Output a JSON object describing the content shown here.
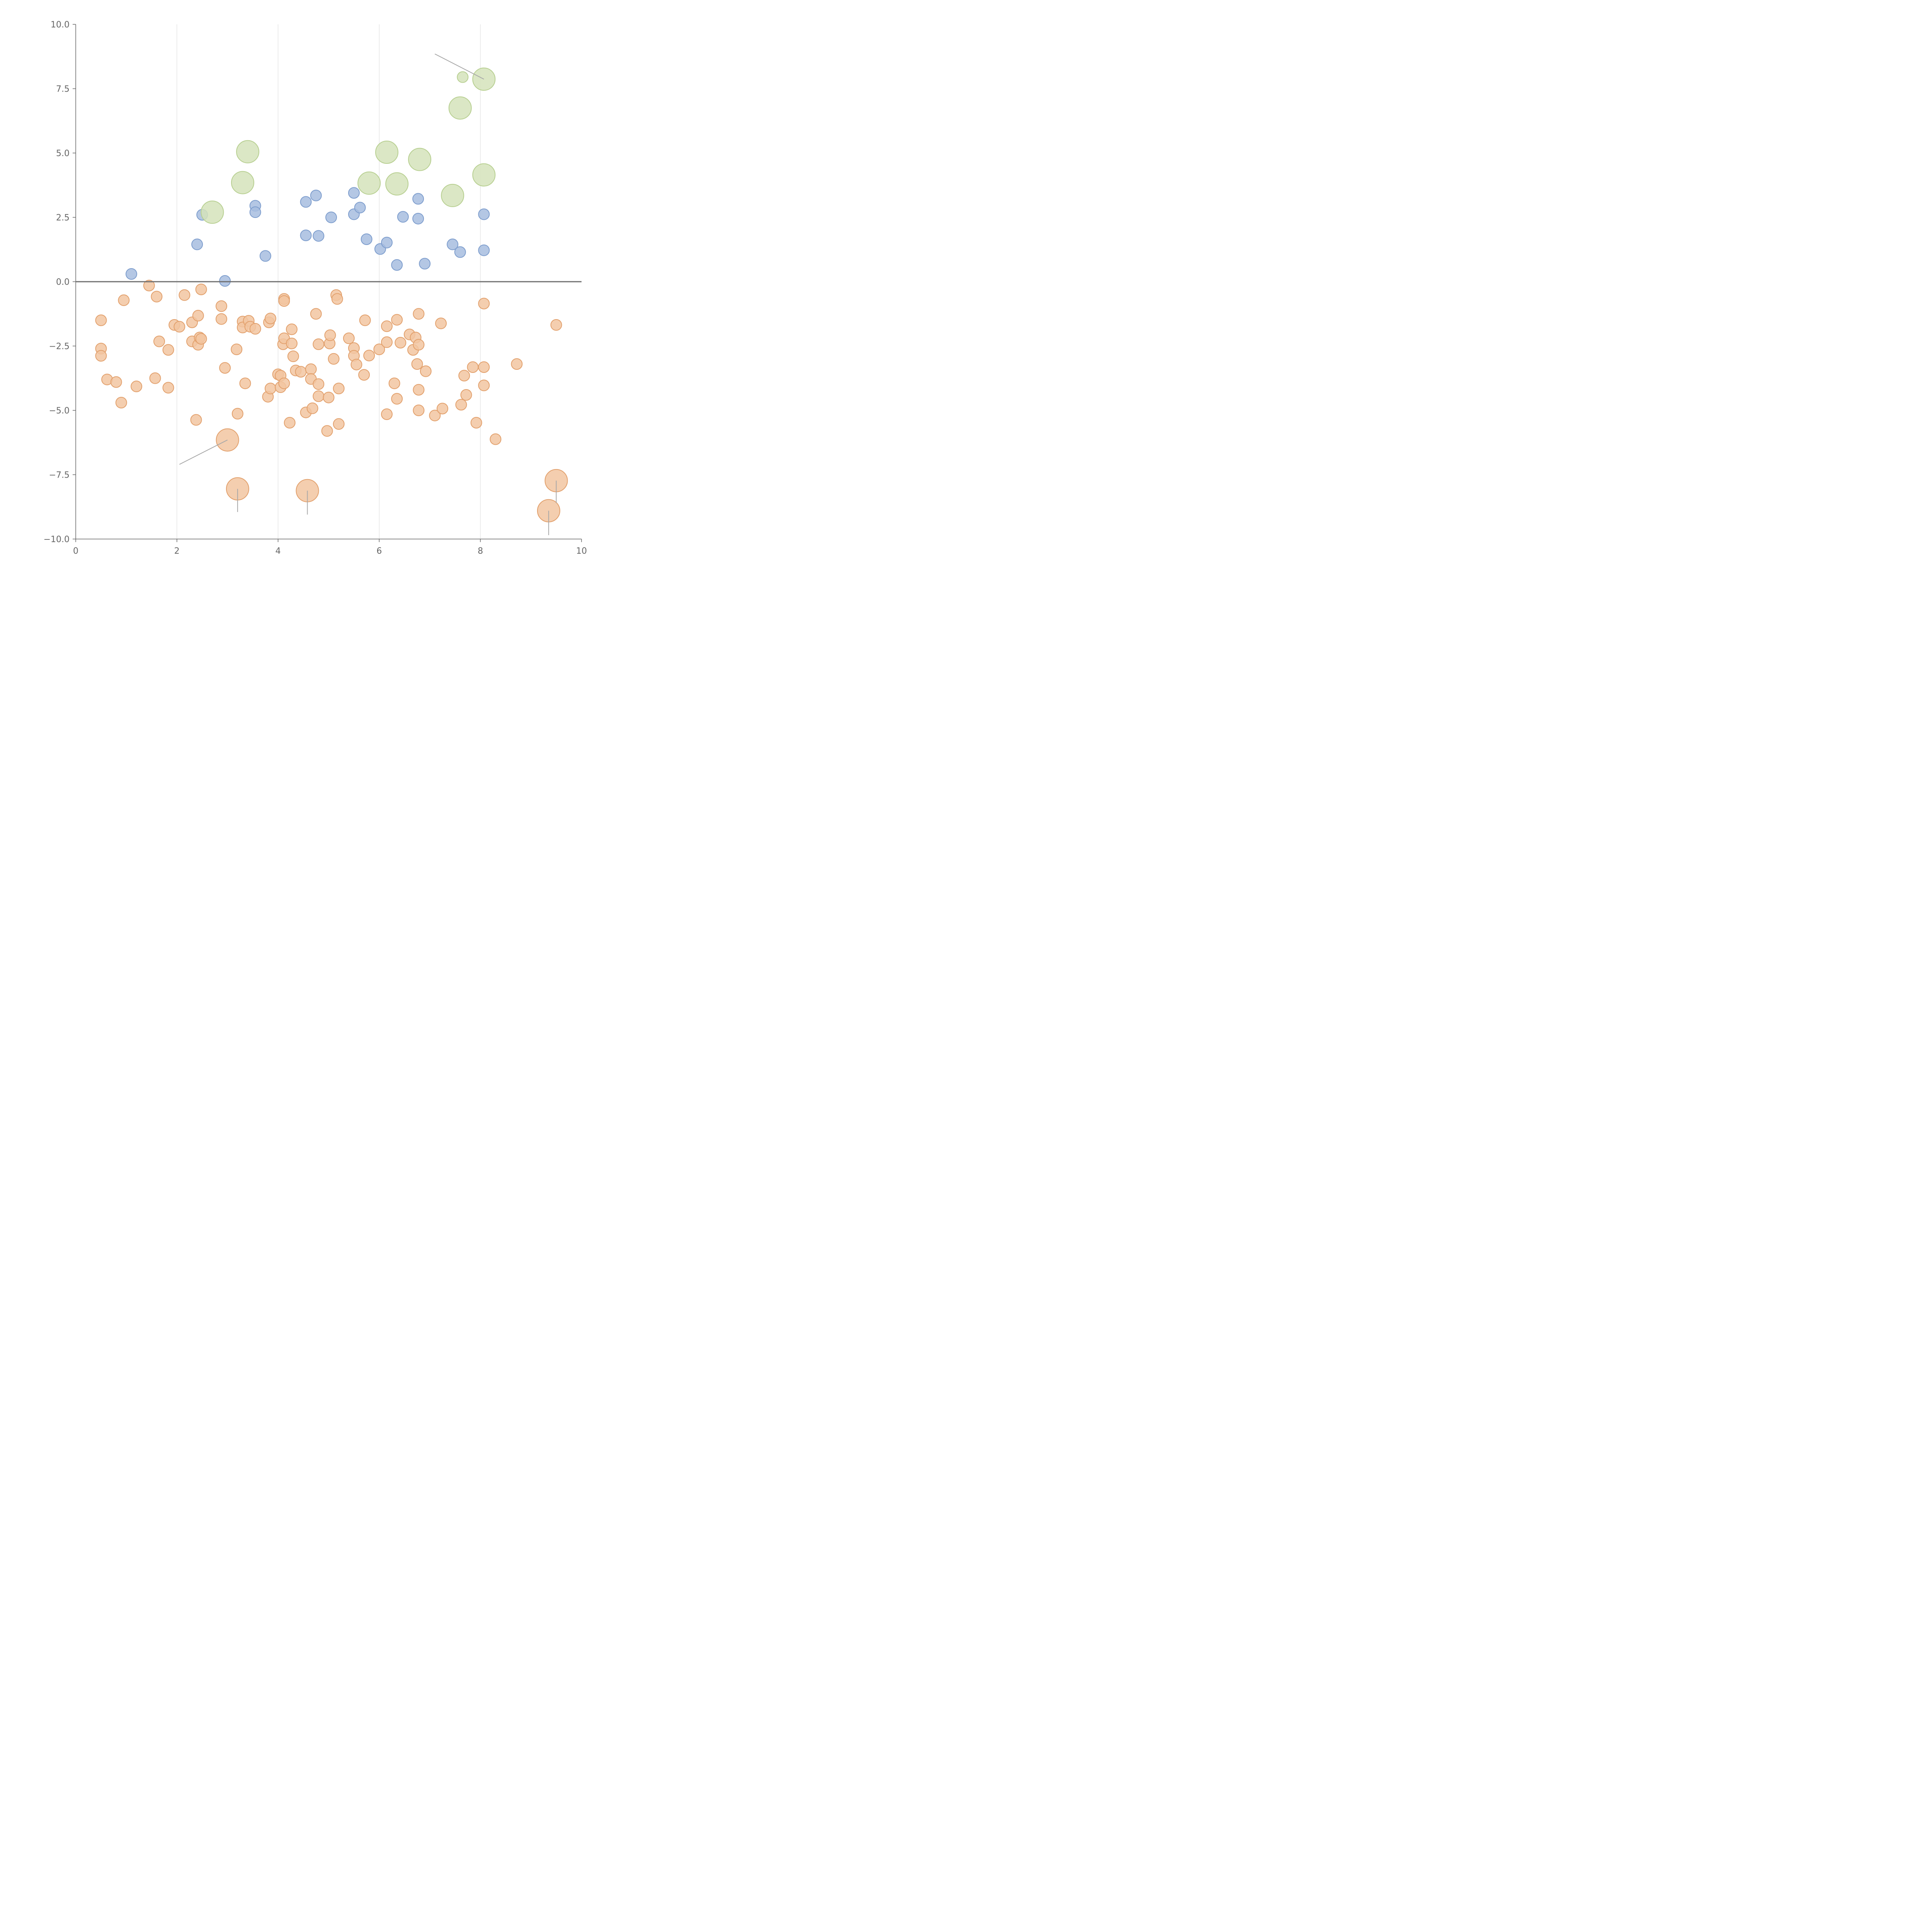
{
  "chart_data": {
    "type": "scatter",
    "title": "",
    "xlabel": "",
    "ylabel": "",
    "xlim": [
      0,
      10
    ],
    "ylim": [
      -10,
      10
    ],
    "x_ticks": [
      0,
      2,
      4,
      6,
      8,
      10
    ],
    "x_tick_labels": [
      "0",
      "2",
      "4",
      "6",
      "8",
      "10"
    ],
    "y_ticks": [
      10,
      7.5,
      5,
      2.5,
      0,
      -2.5,
      -5,
      -7.5,
      -10
    ],
    "y_tick_labels": [
      "10.0",
      "7.5",
      "5.0",
      "2.5",
      "0.0",
      "−2.5",
      "−5.0",
      "−7.5",
      "−10.0"
    ],
    "vertical_grid": true,
    "horizontal_reference_line": 0,
    "legend": "none",
    "colors": {
      "blue_fill": "#a7bddf",
      "blue_stroke": "#7d9dcd",
      "green_fill": "#d5e3bb",
      "green_stroke": "#b7cf90",
      "orange_fill": "#f2c6a1",
      "orange_stroke": "#e2a06c"
    },
    "series": [
      {
        "color": "blue",
        "size": "small",
        "points": [
          [
            1.1,
            0.3
          ],
          [
            2.4,
            1.45
          ],
          [
            2.5,
            2.6
          ],
          [
            2.95,
            0.03
          ],
          [
            3.55,
            2.95
          ],
          [
            3.55,
            2.7
          ],
          [
            3.75,
            1.0
          ],
          [
            4.55,
            3.1
          ],
          [
            4.55,
            1.8
          ],
          [
            4.75,
            3.35
          ],
          [
            4.8,
            1.78
          ],
          [
            5.05,
            2.5
          ],
          [
            5.5,
            3.45
          ],
          [
            5.5,
            2.62
          ],
          [
            5.62,
            2.88
          ],
          [
            5.75,
            1.65
          ],
          [
            6.02,
            1.27
          ],
          [
            6.15,
            1.52
          ],
          [
            6.35,
            0.65
          ],
          [
            6.47,
            2.52
          ],
          [
            6.77,
            3.22
          ],
          [
            6.77,
            2.45
          ],
          [
            6.9,
            0.7
          ],
          [
            7.45,
            1.45
          ],
          [
            7.6,
            1.15
          ],
          [
            8.07,
            2.62
          ],
          [
            8.07,
            1.22
          ]
        ]
      },
      {
        "color": "green",
        "size": "large",
        "points": [
          [
            2.7,
            2.7
          ],
          [
            3.3,
            3.85
          ],
          [
            3.4,
            5.05
          ],
          [
            5.8,
            3.83
          ],
          [
            6.15,
            5.03
          ],
          [
            6.35,
            3.8
          ],
          [
            6.8,
            4.75
          ],
          [
            7.45,
            3.35
          ],
          [
            7.6,
            6.75
          ],
          [
            8.07,
            7.87
          ],
          [
            8.07,
            4.15
          ]
        ]
      },
      {
        "color": "green",
        "size": "small",
        "points": [
          [
            7.65,
            7.95
          ]
        ]
      },
      {
        "color": "orange",
        "size": "small",
        "points": [
          [
            0.5,
            -1.5
          ],
          [
            0.5,
            -2.6
          ],
          [
            0.5,
            -2.88
          ],
          [
            0.62,
            -3.8
          ],
          [
            0.8,
            -3.9
          ],
          [
            0.9,
            -4.7
          ],
          [
            0.95,
            -0.72
          ],
          [
            1.2,
            -4.07
          ],
          [
            1.45,
            -0.15
          ],
          [
            1.57,
            -3.75
          ],
          [
            1.6,
            -0.58
          ],
          [
            1.65,
            -2.32
          ],
          [
            1.83,
            -2.65
          ],
          [
            1.83,
            -4.12
          ],
          [
            1.95,
            -1.68
          ],
          [
            2.05,
            -1.75
          ],
          [
            2.15,
            -0.52
          ],
          [
            2.3,
            -1.58
          ],
          [
            2.3,
            -2.32
          ],
          [
            2.38,
            -5.37
          ],
          [
            2.42,
            -2.45
          ],
          [
            2.42,
            -1.32
          ],
          [
            2.45,
            -2.17
          ],
          [
            2.48,
            -2.22
          ],
          [
            2.48,
            -0.3
          ],
          [
            2.88,
            -0.95
          ],
          [
            2.88,
            -1.45
          ],
          [
            2.95,
            -3.35
          ],
          [
            3.18,
            -2.63
          ],
          [
            3.2,
            -5.13
          ],
          [
            3.3,
            -1.55
          ],
          [
            3.3,
            -1.78
          ],
          [
            3.35,
            -3.95
          ],
          [
            3.42,
            -1.52
          ],
          [
            3.45,
            -1.75
          ],
          [
            3.55,
            -1.83
          ],
          [
            3.82,
            -1.58
          ],
          [
            3.85,
            -1.43
          ],
          [
            3.8,
            -4.47
          ],
          [
            3.85,
            -4.15
          ],
          [
            4.0,
            -3.6
          ],
          [
            4.05,
            -3.65
          ],
          [
            4.05,
            -4.1
          ],
          [
            4.1,
            -2.43
          ],
          [
            4.12,
            -2.2
          ],
          [
            4.12,
            -3.95
          ],
          [
            4.12,
            -0.67
          ],
          [
            4.12,
            -0.75
          ],
          [
            4.27,
            -1.85
          ],
          [
            4.27,
            -2.4
          ],
          [
            4.3,
            -2.9
          ],
          [
            4.35,
            -3.45
          ],
          [
            4.45,
            -3.5
          ],
          [
            4.23,
            -5.48
          ],
          [
            4.55,
            -5.08
          ],
          [
            4.65,
            -3.4
          ],
          [
            4.65,
            -3.78
          ],
          [
            4.68,
            -4.92
          ],
          [
            4.75,
            -1.25
          ],
          [
            4.8,
            -2.43
          ],
          [
            4.8,
            -3.98
          ],
          [
            4.8,
            -4.45
          ],
          [
            4.97,
            -5.8
          ],
          [
            5.0,
            -4.5
          ],
          [
            5.02,
            -2.4
          ],
          [
            5.03,
            -2.08
          ],
          [
            5.1,
            -3.0
          ],
          [
            5.15,
            -0.52
          ],
          [
            5.17,
            -0.67
          ],
          [
            5.2,
            -4.15
          ],
          [
            5.2,
            -5.53
          ],
          [
            5.4,
            -2.2
          ],
          [
            5.5,
            -2.58
          ],
          [
            5.5,
            -2.88
          ],
          [
            5.55,
            -3.22
          ],
          [
            5.7,
            -3.62
          ],
          [
            5.72,
            -1.5
          ],
          [
            5.8,
            -2.87
          ],
          [
            6.0,
            -2.63
          ],
          [
            6.15,
            -1.73
          ],
          [
            6.15,
            -2.35
          ],
          [
            6.15,
            -5.15
          ],
          [
            6.3,
            -3.95
          ],
          [
            6.35,
            -1.48
          ],
          [
            6.35,
            -4.55
          ],
          [
            6.42,
            -2.37
          ],
          [
            6.6,
            -2.05
          ],
          [
            6.67,
            -2.65
          ],
          [
            6.72,
            -2.17
          ],
          [
            6.75,
            -3.2
          ],
          [
            6.78,
            -1.25
          ],
          [
            6.78,
            -2.45
          ],
          [
            6.78,
            -4.2
          ],
          [
            6.78,
            -5.0
          ],
          [
            6.92,
            -3.48
          ],
          [
            7.1,
            -5.2
          ],
          [
            7.22,
            -1.62
          ],
          [
            7.25,
            -4.93
          ],
          [
            7.62,
            -4.78
          ],
          [
            7.68,
            -3.65
          ],
          [
            7.72,
            -4.4
          ],
          [
            7.85,
            -3.32
          ],
          [
            7.92,
            -5.48
          ],
          [
            8.07,
            -0.85
          ],
          [
            8.07,
            -3.32
          ],
          [
            8.07,
            -4.03
          ],
          [
            8.3,
            -6.12
          ],
          [
            8.72,
            -3.2
          ],
          [
            9.5,
            -1.68
          ]
        ]
      },
      {
        "color": "orange",
        "size": "large",
        "points": [
          [
            3.0,
            -6.15
          ],
          [
            3.2,
            -8.05
          ],
          [
            4.58,
            -8.12
          ],
          [
            9.5,
            -7.73
          ],
          [
            9.35,
            -8.9
          ]
        ]
      }
    ],
    "leader_lines": [
      [
        [
          2.05,
          -7.1
        ],
        [
          3.0,
          -6.15
        ]
      ],
      [
        [
          3.2,
          -8.05
        ],
        [
          3.2,
          -8.95
        ]
      ],
      [
        [
          4.58,
          -8.12
        ],
        [
          4.58,
          -9.05
        ]
      ],
      [
        [
          9.5,
          -7.73
        ],
        [
          9.5,
          -8.6
        ]
      ],
      [
        [
          9.35,
          -8.9
        ],
        [
          9.35,
          -9.85
        ]
      ],
      [
        [
          7.1,
          8.85
        ],
        [
          8.07,
          7.87
        ]
      ]
    ]
  }
}
